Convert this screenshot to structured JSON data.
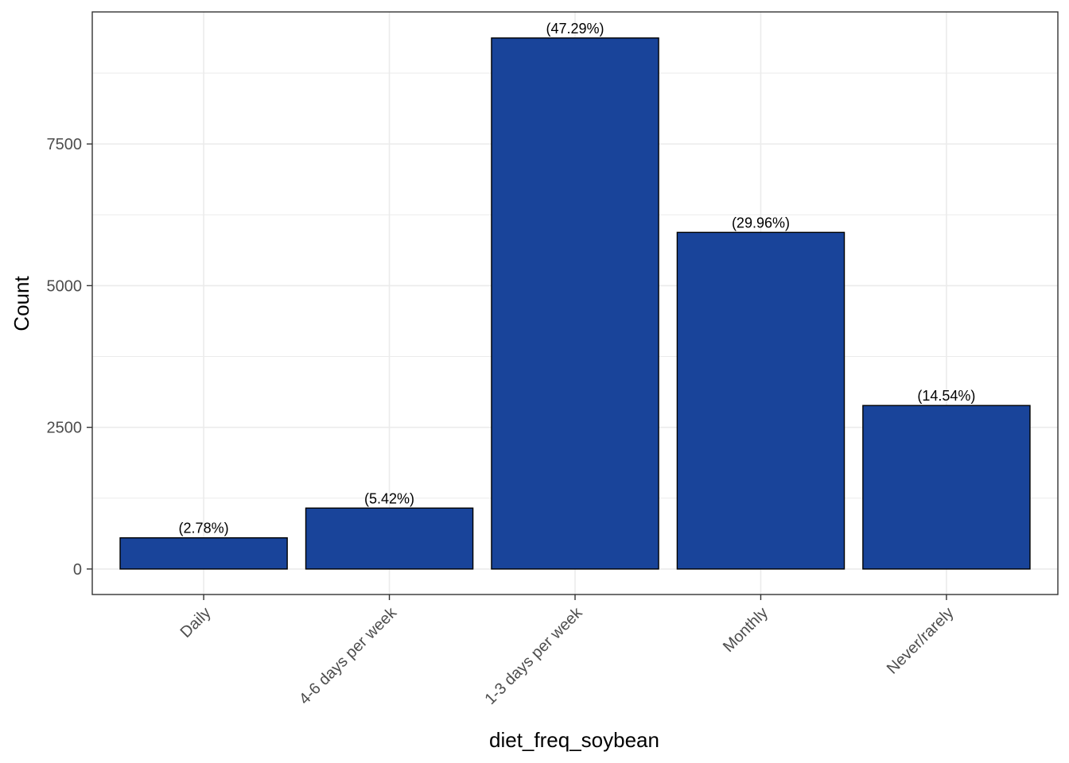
{
  "chart_data": {
    "type": "bar",
    "categories": [
      "Daily",
      "4-6 days per week",
      "1-3 days per week",
      "Monthly",
      "Never/rarely"
    ],
    "values": [
      550,
      1075,
      9370,
      5940,
      2885
    ],
    "labels": [
      "(2.78%)",
      "(5.42%)",
      "(47.29%)",
      "(29.96%)",
      "(14.54%)"
    ],
    "xlabel": "diet_freq_soybean",
    "ylabel": "Count",
    "ylim": [
      -450,
      9830
    ],
    "yticks": [
      0,
      2500,
      5000,
      7500
    ],
    "yticks_labels": [
      "0",
      "2500",
      "5000",
      "7500"
    ],
    "grid": true,
    "colors": {
      "bar_fill": "#19449A",
      "bar_stroke": "#000000",
      "grid": "#EBEBEB",
      "panel_border": "#333333"
    }
  }
}
